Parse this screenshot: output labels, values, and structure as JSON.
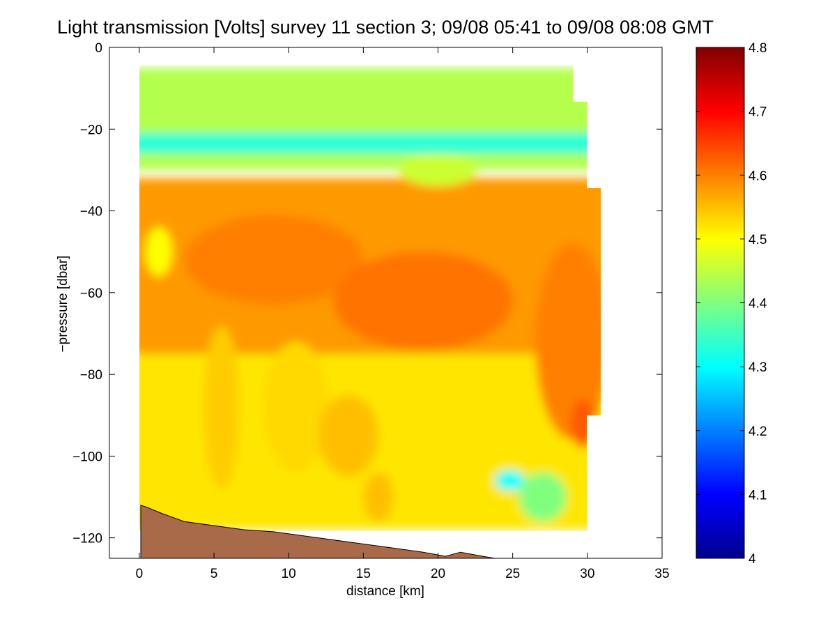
{
  "chart_data": {
    "type": "heatmap",
    "title": "Light transmission [Volts] survey 11 section 3; 09/08 05:41 to 09/08 08:08 GMT",
    "xlabel": "distance [km]",
    "ylabel": "−pressure [dbar]",
    "xlim": [
      -2,
      35
    ],
    "ylim": [
      -125,
      0
    ],
    "xticks": [
      0,
      5,
      10,
      15,
      20,
      25,
      30,
      35
    ],
    "yticks": [
      0,
      -20,
      -40,
      -60,
      -80,
      -100,
      -120
    ],
    "xtick_labels": [
      "0",
      "5",
      "10",
      "15",
      "20",
      "25",
      "30",
      "35"
    ],
    "ytick_labels": [
      "0",
      "−20",
      "−40",
      "−60",
      "−80",
      "−100",
      "−120"
    ],
    "colorbar": {
      "label": "",
      "range": [
        4.0,
        4.8
      ],
      "ticks": [
        4.0,
        4.1,
        4.2,
        4.3,
        4.4,
        4.5,
        4.6,
        4.7,
        4.8
      ],
      "tick_labels": [
        "4",
        "4.1",
        "4.2",
        "4.3",
        "4.4",
        "4.5",
        "4.6",
        "4.7",
        "4.8"
      ],
      "colormap": "jet"
    },
    "grid": false,
    "field_layers": [
      {
        "name": "surface-layer",
        "pressure_range": [
          -5,
          -30
        ],
        "value": 4.44
      },
      {
        "name": "low-transmission-band",
        "pressure_range": [
          -21,
          -26
        ],
        "value": 4.33
      },
      {
        "name": "mid-layer",
        "pressure_range": [
          -32,
          -75
        ],
        "value": 4.58
      },
      {
        "name": "deep-layer",
        "pressure_range": [
          -75,
          -118
        ],
        "value": 4.52
      }
    ],
    "bathymetry": {
      "distance": [
        0.1,
        0.5,
        1.5,
        3,
        5,
        7,
        9,
        11,
        13,
        15,
        17,
        19,
        20.5,
        21.5,
        23,
        23.8
      ],
      "minus_pressure": [
        -112,
        -112.5,
        -114,
        -116,
        -117,
        -118,
        -118.5,
        -119.5,
        -120.5,
        -121.5,
        -122.5,
        -123.5,
        -124.5,
        -123.5,
        -124.5,
        -125
      ]
    }
  },
  "colors": {
    "bathymetry_fill": "#a86a48",
    "background": "#ffffff",
    "axes": "#000000"
  }
}
